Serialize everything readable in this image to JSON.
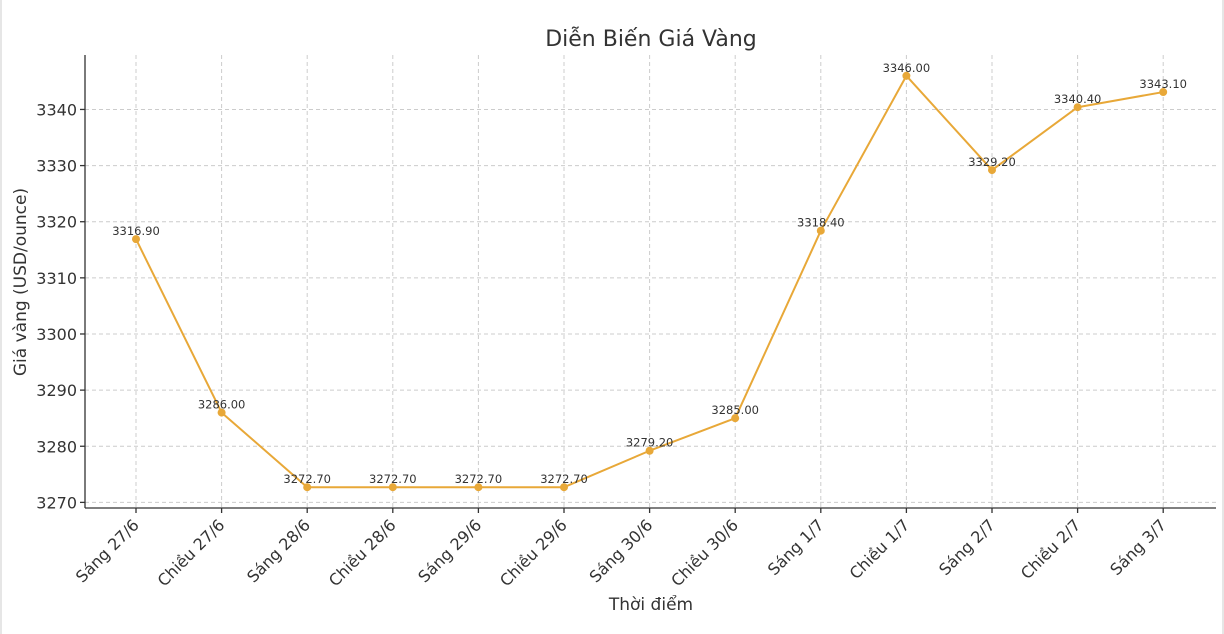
{
  "chart_data": {
    "type": "line",
    "title": "Diễn Biến Giá Vàng",
    "xlabel": "Thời điểm",
    "ylabel": "Giá vàng (USD/ounce)",
    "categories": [
      "Sáng 27/6",
      "Chiều 27/6",
      "Sáng 28/6",
      "Chiều 28/6",
      "Sáng 29/6",
      "Chiều 29/6",
      "Sáng 30/6",
      "Chiều 30/6",
      "Sáng 1/7",
      "Chiều 1/7",
      "Sáng 2/7",
      "Chiều 2/7",
      "Sáng 3/7"
    ],
    "series": [
      {
        "values": [
          3316.9,
          3286.0,
          3272.7,
          3272.7,
          3272.7,
          3272.7,
          3279.2,
          3285.0,
          3318.4,
          3346.0,
          3329.2,
          3340.4,
          3343.1
        ],
        "data_labels": [
          "3316.90",
          "3286.00",
          "3272.70",
          "3272.70",
          "3272.70",
          "3272.70",
          "3279.20",
          "3285.00",
          "3318.40",
          "3346.00",
          "3329.20",
          "3340.40",
          "3343.10"
        ],
        "color": "#e8a838"
      }
    ],
    "yticks": [
      3270,
      3280,
      3290,
      3300,
      3310,
      3320,
      3330,
      3340
    ],
    "ylim": [
      3269.0,
      3349.7
    ],
    "grid": true
  }
}
